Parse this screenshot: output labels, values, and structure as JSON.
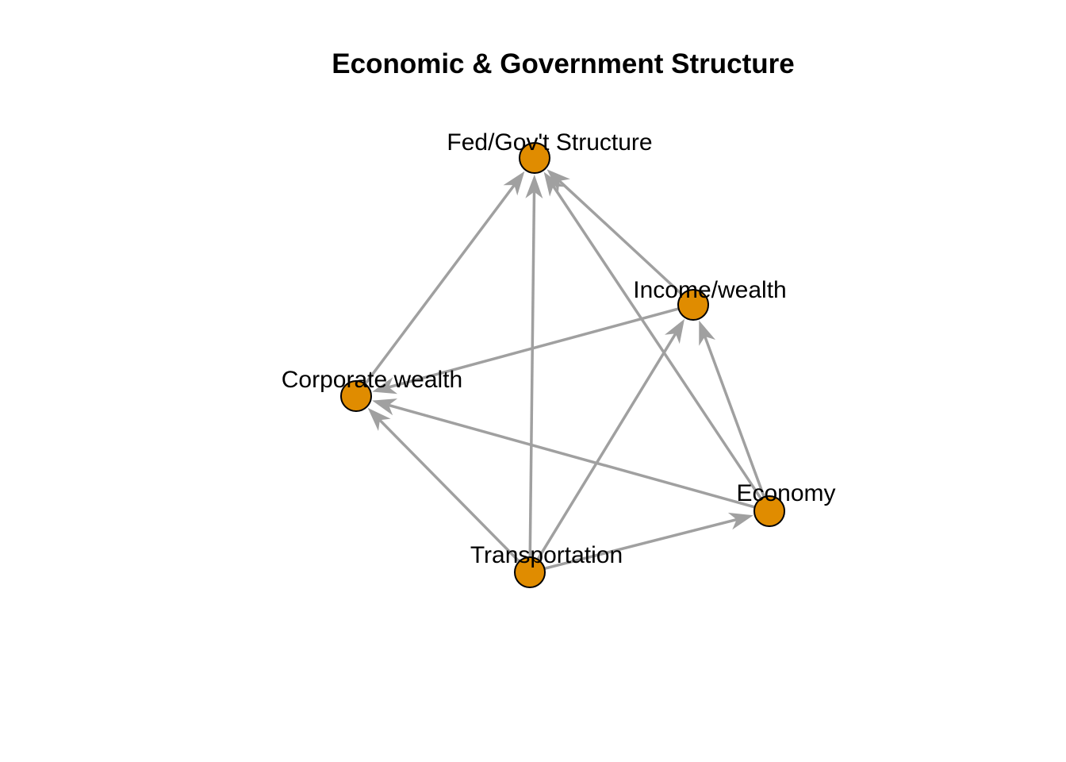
{
  "title": "Economic & Government Structure",
  "colors": {
    "node_fill": "#E08C00",
    "node_stroke": "#000000",
    "edge": "#A0A0A0",
    "background": "#FFFFFF"
  },
  "nodes": [
    {
      "id": "fed",
      "label": "Fed/Gov't Structure"
    },
    {
      "id": "income",
      "label": "Income/wealth"
    },
    {
      "id": "corporate",
      "label": "Corporate wealth"
    },
    {
      "id": "economy",
      "label": "Economy"
    },
    {
      "id": "transportation",
      "label": "Transportation"
    }
  ],
  "edges": [
    {
      "from": "corporate",
      "to": "fed"
    },
    {
      "from": "transportation",
      "to": "fed"
    },
    {
      "from": "income",
      "to": "fed"
    },
    {
      "from": "economy",
      "to": "fed"
    },
    {
      "from": "income",
      "to": "corporate"
    },
    {
      "from": "economy",
      "to": "corporate"
    },
    {
      "from": "transportation",
      "to": "corporate"
    },
    {
      "from": "transportation",
      "to": "income"
    },
    {
      "from": "economy",
      "to": "income"
    },
    {
      "from": "transportation",
      "to": "economy"
    }
  ]
}
